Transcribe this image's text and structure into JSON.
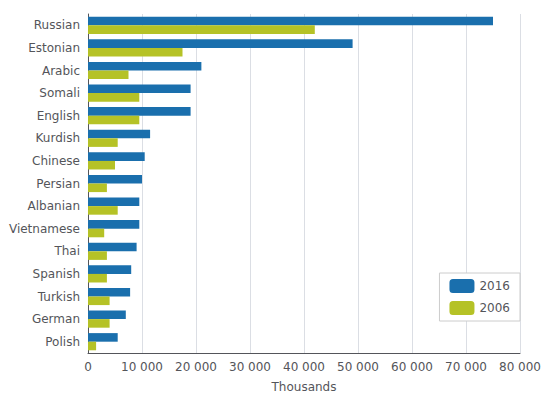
{
  "chart_data": {
    "type": "bar",
    "orientation": "horizontal",
    "categories": [
      "Russian",
      "Estonian",
      "Arabic",
      "Somali",
      "English",
      "Kurdish",
      "Chinese",
      "Persian",
      "Albanian",
      "Vietnamese",
      "Thai",
      "Spanish",
      "Turkish",
      "German",
      "Polish"
    ],
    "series": [
      {
        "name": "2016",
        "color": "#1a6fad",
        "values": [
          75000,
          49000,
          21000,
          19000,
          19000,
          11500,
          10500,
          10000,
          9500,
          9500,
          9000,
          8000,
          7800,
          7000,
          5500
        ]
      },
      {
        "name": "2006",
        "color": "#b5c226",
        "values": [
          42000,
          17500,
          7500,
          9500,
          9500,
          5500,
          5000,
          3500,
          5500,
          3000,
          3500,
          3500,
          4000,
          4000,
          1500
        ]
      }
    ],
    "xlabel": "Thousands",
    "xlim": [
      0,
      80000
    ],
    "xticks": [
      0,
      {
        "value": 10000,
        "label": "10 000"
      },
      {
        "value": 20000,
        "label": "20 000"
      },
      {
        "value": 30000,
        "label": "30 000"
      },
      {
        "value": 40000,
        "label": "40 000"
      },
      {
        "value": 50000,
        "label": "50 000"
      },
      {
        "value": 60000,
        "label": "60 000"
      },
      {
        "value": 70000,
        "label": "70 000"
      },
      {
        "value": 80000,
        "label": "80 000"
      }
    ],
    "grid": true,
    "legend": "lower right"
  }
}
